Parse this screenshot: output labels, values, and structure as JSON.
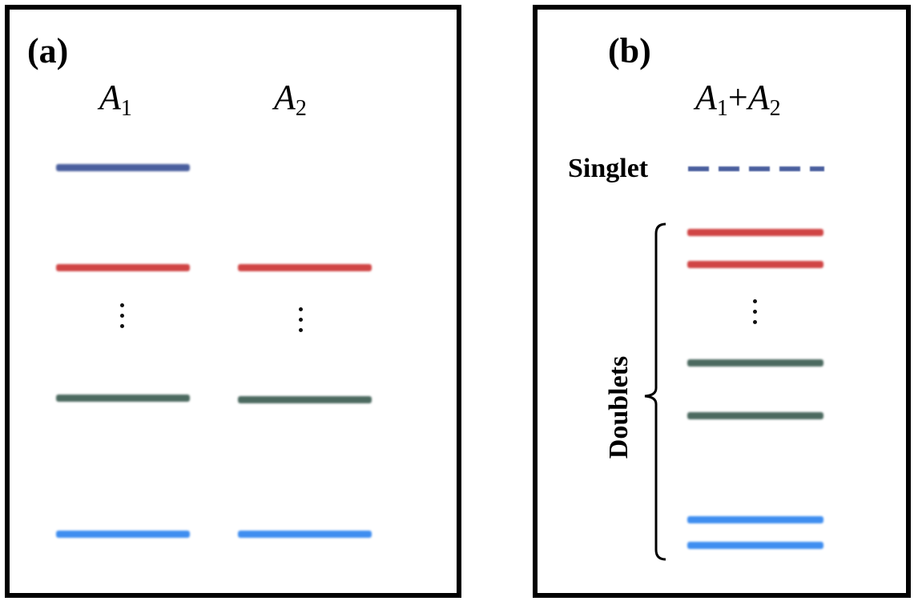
{
  "panel_a": {
    "label": "(a)",
    "columns": [
      {
        "symbol": "A",
        "subscript": "1"
      },
      {
        "symbol": "A",
        "subscript": "2"
      }
    ]
  },
  "panel_b": {
    "label": "(b)",
    "title": {
      "symbol1": "A",
      "sub1": "1",
      "plus": "+",
      "symbol2": "A",
      "sub2": "2"
    },
    "singlet_label": "Singlet",
    "doublets_label": "Doublets"
  },
  "colors": {
    "dark_blue": "#4a5f9e",
    "red": "#d04545",
    "gray_green": "#4c6a60",
    "light_blue": "#3f8ef0"
  }
}
